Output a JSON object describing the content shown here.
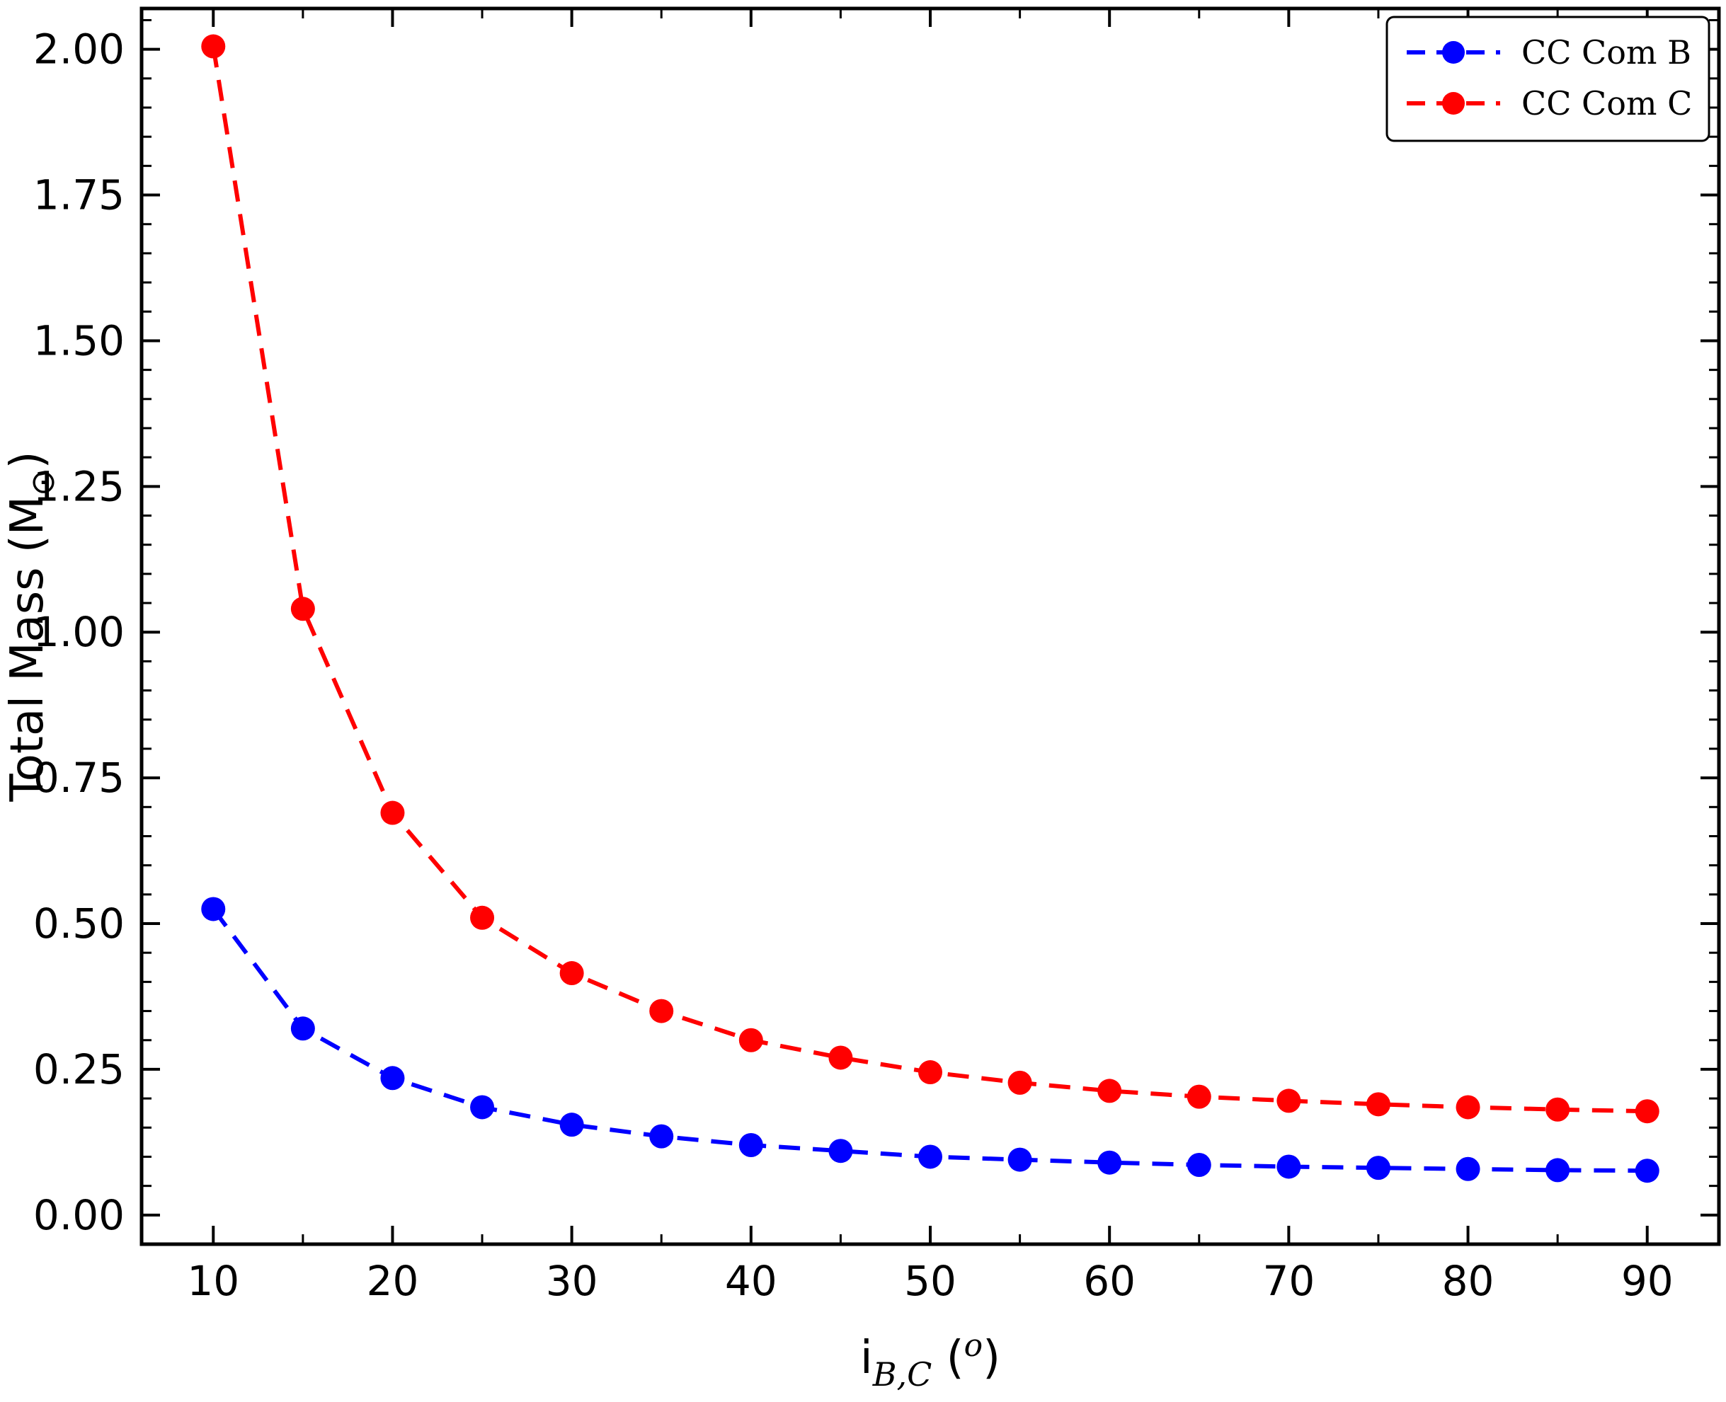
{
  "figure": {
    "background": "#ffffff",
    "frame_color": "#000000"
  },
  "chart_data": {
    "type": "line",
    "title": "",
    "xlabel": "i_B,C (deg)",
    "xlabel_parts": {
      "base": "i",
      "sub": "B,C",
      "open": " (",
      "sup": "o",
      "close": ")"
    },
    "ylabel": "Total Mass (M_sun)",
    "ylabel_parts": {
      "base": "Total Mass (M",
      "sub": "⊙",
      "close": ")"
    },
    "x": [
      10,
      15,
      20,
      25,
      30,
      35,
      40,
      45,
      50,
      55,
      60,
      65,
      70,
      75,
      80,
      85,
      90
    ],
    "series": [
      {
        "name": "CC Com B",
        "color": "#0000ff",
        "marker": "circle",
        "linestyle": "dashed",
        "values": [
          0.525,
          0.32,
          0.235,
          0.185,
          0.155,
          0.135,
          0.12,
          0.11,
          0.1,
          0.095,
          0.09,
          0.086,
          0.083,
          0.081,
          0.079,
          0.077,
          0.076
        ]
      },
      {
        "name": "CC Com C",
        "color": "#ff0000",
        "marker": "circle",
        "linestyle": "dashed",
        "values": [
          2.005,
          1.04,
          0.69,
          0.51,
          0.415,
          0.35,
          0.3,
          0.27,
          0.245,
          0.227,
          0.213,
          0.203,
          0.196,
          0.19,
          0.185,
          0.181,
          0.178
        ]
      }
    ],
    "xlim": [
      6,
      94
    ],
    "ylim": [
      -0.05,
      2.07
    ],
    "xticks": [
      10,
      20,
      30,
      40,
      50,
      60,
      70,
      80,
      90
    ],
    "yticks": [
      0.0,
      0.25,
      0.5,
      0.75,
      1.0,
      1.25,
      1.5,
      1.75,
      2.0
    ],
    "x_minor_step": 5,
    "y_minor_step": 0.05,
    "grid": false,
    "legend_position": "upper right",
    "legend_entries": [
      "CC Com B",
      "CC Com C"
    ]
  }
}
